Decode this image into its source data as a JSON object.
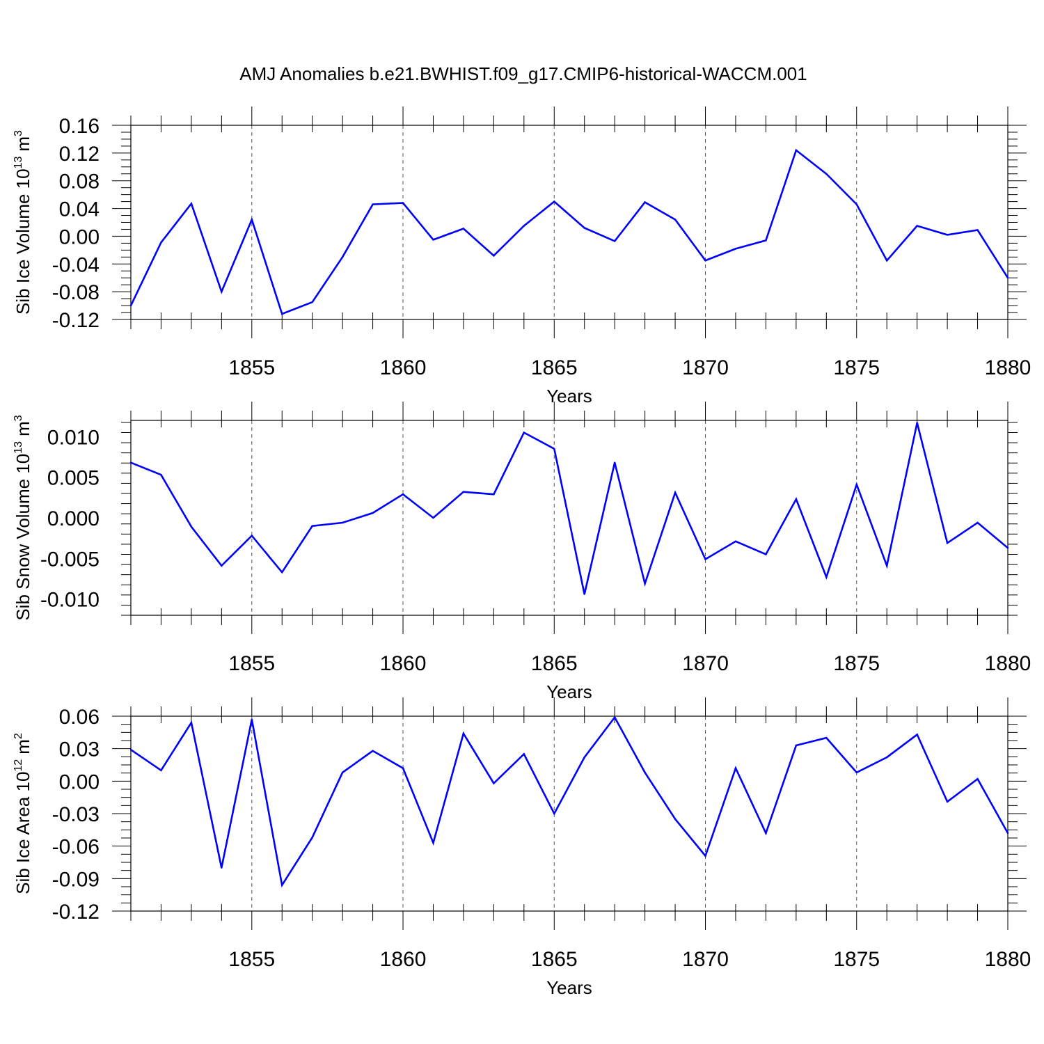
{
  "title": "AMJ Anomalies b.e21.BWHIST.f09_g17.CMIP6-historical-WACCM.001",
  "line_color": "#0000ff",
  "chart_data": [
    {
      "type": "line",
      "ylabel_text": "Sib Ice Volume 10",
      "ylabel_exponent": "13",
      "ylabel_unit": "m",
      "ylabel_unit_exponent": "3",
      "ylabel": "Sib Ice Volume 10^13 m^3",
      "xlabel": "Years",
      "xlim": [
        1851,
        1880
      ],
      "ylim": [
        -0.12,
        0.16
      ],
      "x_ticks": [
        1855,
        1860,
        1865,
        1870,
        1875,
        1880
      ],
      "y_ticks": [
        -0.12,
        -0.08,
        -0.04,
        0.0,
        0.04,
        0.08,
        0.12,
        0.16
      ],
      "y_tick_labels": [
        "-0.12",
        "-0.08",
        "-0.04",
        "0.00",
        "0.04",
        "0.08",
        "0.12",
        "0.16"
      ],
      "series": [
        {
          "name": "Sib Ice Volume",
          "x": [
            1851,
            1852,
            1853,
            1854,
            1855,
            1856,
            1857,
            1858,
            1859,
            1860,
            1861,
            1862,
            1863,
            1864,
            1865,
            1866,
            1867,
            1868,
            1869,
            1870,
            1871,
            1872,
            1873,
            1874,
            1875,
            1876,
            1877,
            1878,
            1879,
            1880
          ],
          "values": [
            -0.1,
            -0.009,
            0.047,
            -0.08,
            0.024,
            -0.112,
            -0.095,
            -0.03,
            0.046,
            0.048,
            -0.005,
            0.011,
            -0.028,
            0.015,
            0.05,
            0.012,
            -0.007,
            0.049,
            0.024,
            -0.035,
            -0.018,
            -0.006,
            0.124,
            0.09,
            0.046,
            -0.035,
            0.015,
            0.002,
            0.009,
            -0.06
          ]
        }
      ]
    },
    {
      "type": "line",
      "ylabel_text": "Sib Snow Volume 10",
      "ylabel_exponent": "13",
      "ylabel_unit": "m",
      "ylabel_unit_exponent": "3",
      "ylabel": "Sib Snow Volume 10^13 m^3",
      "xlabel": "Years",
      "xlim": [
        1851,
        1880
      ],
      "ylim": [
        -0.012,
        0.012
      ],
      "x_ticks": [
        1855,
        1860,
        1865,
        1870,
        1875,
        1880
      ],
      "y_ticks": [
        -0.01,
        -0.005,
        0.0,
        0.005,
        0.01
      ],
      "y_tick_labels": [
        "-0.010",
        "-0.005",
        "0.000",
        "0.005",
        "0.010"
      ],
      "series": [
        {
          "name": "Sib Snow Volume",
          "x": [
            1851,
            1852,
            1853,
            1854,
            1855,
            1856,
            1857,
            1858,
            1859,
            1860,
            1861,
            1862,
            1863,
            1864,
            1865,
            1866,
            1867,
            1868,
            1869,
            1870,
            1871,
            1872,
            1873,
            1874,
            1875,
            1876,
            1877,
            1878,
            1879,
            1880
          ],
          "values": [
            0.0068,
            0.0053,
            -0.0011,
            -0.0059,
            -0.0022,
            -0.0067,
            -0.001,
            -0.0006,
            0.0006,
            0.0029,
            0.0,
            0.0032,
            0.0029,
            0.0105,
            0.0085,
            -0.0094,
            0.0068,
            -0.0081,
            0.0031,
            -0.0051,
            -0.0029,
            -0.0045,
            0.0023,
            -0.0073,
            0.0041,
            -0.0059,
            0.0117,
            -0.0031,
            -0.0006,
            -0.0037
          ]
        }
      ]
    },
    {
      "type": "line",
      "ylabel_text": "Sib Ice Area 10",
      "ylabel_exponent": "12",
      "ylabel_unit": "m",
      "ylabel_unit_exponent": "2",
      "ylabel": "Sib Ice Area 10^12 m^2",
      "xlabel": "Years",
      "xlim": [
        1851,
        1880
      ],
      "ylim": [
        -0.12,
        0.06
      ],
      "x_ticks": [
        1855,
        1860,
        1865,
        1870,
        1875,
        1880
      ],
      "y_ticks": [
        -0.12,
        -0.09,
        -0.06,
        -0.03,
        0.0,
        0.03,
        0.06
      ],
      "y_tick_labels": [
        "-0.12",
        "-0.09",
        "-0.06",
        "-0.03",
        "0.00",
        "0.03",
        "0.06"
      ],
      "series": [
        {
          "name": "Sib Ice Area",
          "x": [
            1851,
            1852,
            1853,
            1854,
            1855,
            1856,
            1857,
            1858,
            1859,
            1860,
            1861,
            1862,
            1863,
            1864,
            1865,
            1866,
            1867,
            1868,
            1869,
            1870,
            1871,
            1872,
            1873,
            1874,
            1875,
            1876,
            1877,
            1878,
            1879,
            1880
          ],
          "values": [
            0.029,
            0.01,
            0.054,
            -0.08,
            0.057,
            -0.096,
            -0.052,
            0.008,
            0.028,
            0.012,
            -0.057,
            0.044,
            -0.002,
            0.025,
            -0.03,
            0.022,
            0.059,
            0.008,
            -0.035,
            -0.069,
            0.012,
            -0.048,
            0.033,
            0.04,
            0.008,
            0.022,
            0.043,
            -0.019,
            0.002,
            -0.048
          ]
        }
      ]
    }
  ]
}
